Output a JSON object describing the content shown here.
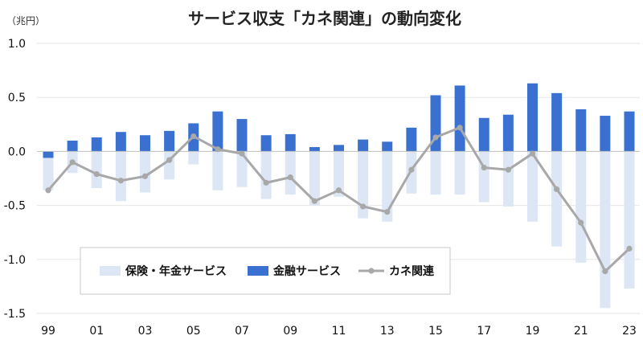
{
  "chart_data": {
    "type": "bar",
    "title": "サービス収支「カネ関連」の動向変化",
    "unit_label": "（兆円）",
    "ylim": [
      -1.5,
      1.0
    ],
    "y_ticks": [
      "1.0",
      "0.5",
      "0.0",
      "-0.5",
      "-1.0",
      "-1.5"
    ],
    "y_tick_values": [
      1.0,
      0.5,
      0.0,
      -0.5,
      -1.0,
      -1.5
    ],
    "categories": [
      "99",
      "00",
      "01",
      "02",
      "03",
      "04",
      "05",
      "06",
      "07",
      "08",
      "09",
      "10",
      "11",
      "12",
      "13",
      "14",
      "15",
      "16",
      "17",
      "18",
      "19",
      "20",
      "21",
      "22",
      "23"
    ],
    "x_tick_labels": [
      "99",
      "",
      "01",
      "",
      "03",
      "",
      "05",
      "",
      "07",
      "",
      "09",
      "",
      "11",
      "",
      "13",
      "",
      "15",
      "",
      "17",
      "",
      "19",
      "",
      "21",
      "",
      "23"
    ],
    "series": [
      {
        "name": "保険・年金サービス",
        "kind": "bar",
        "color": "#dde6f5",
        "values": [
          -0.36,
          -0.2,
          -0.34,
          -0.46,
          -0.38,
          -0.26,
          -0.12,
          -0.36,
          -0.33,
          -0.44,
          -0.4,
          -0.5,
          -0.42,
          -0.62,
          -0.65,
          -0.39,
          -0.4,
          -0.4,
          -0.47,
          -0.51,
          -0.65,
          -0.88,
          -1.03,
          -1.45,
          -1.27
        ]
      },
      {
        "name": "金融サービス",
        "kind": "bar",
        "color": "#3a70d0",
        "values": [
          -0.06,
          0.1,
          0.13,
          0.18,
          0.15,
          0.19,
          0.26,
          0.37,
          0.3,
          0.15,
          0.16,
          0.04,
          0.06,
          0.11,
          0.09,
          0.22,
          0.52,
          0.61,
          0.31,
          0.34,
          0.63,
          0.54,
          0.39,
          0.33,
          0.37
        ]
      },
      {
        "name": "カネ関連",
        "kind": "line",
        "color": "#a8a8a8",
        "values": [
          -0.36,
          -0.1,
          -0.21,
          -0.27,
          -0.23,
          -0.08,
          0.14,
          0.02,
          -0.02,
          -0.29,
          -0.24,
          -0.46,
          -0.36,
          -0.51,
          -0.56,
          -0.17,
          0.13,
          0.22,
          -0.15,
          -0.17,
          -0.02,
          -0.35,
          -0.66,
          -1.11,
          -0.9
        ]
      }
    ],
    "legend_position": "lower-left",
    "grid": true
  }
}
